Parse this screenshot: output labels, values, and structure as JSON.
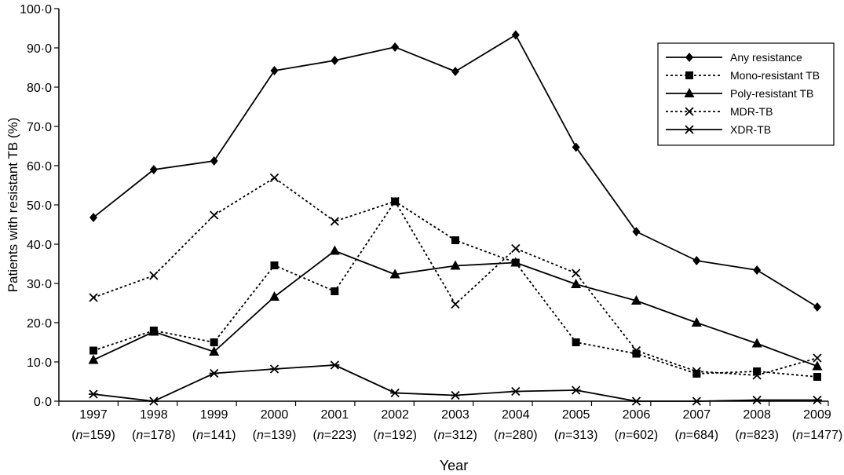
{
  "chart_data": {
    "type": "line",
    "ylabel": "Patients with resistant TB (%)",
    "xlabel": "Year",
    "ylim": [
      0,
      100
    ],
    "yticks": [
      "0·0",
      "10·0",
      "20·0",
      "30·0",
      "40·0",
      "50·0",
      "60·0",
      "70·0",
      "80·0",
      "90·0",
      "100·0"
    ],
    "categories": [
      "1997",
      "1998",
      "1999",
      "2000",
      "2001",
      "2002",
      "2003",
      "2004",
      "2005",
      "2006",
      "2007",
      "2008",
      "2009"
    ],
    "category_n": [
      "159",
      "178",
      "141",
      "139",
      "223",
      "192",
      "312",
      "280",
      "313",
      "602",
      "684",
      "823",
      "1477"
    ],
    "n_prefix": "n",
    "grid": false,
    "legend_position": "top-right",
    "series": [
      {
        "name": "Any resistance",
        "marker": "diamond",
        "line": "solid",
        "values": [
          46.8,
          59.0,
          61.2,
          84.2,
          86.8,
          90.2,
          84.0,
          93.3,
          64.7,
          43.2,
          35.8,
          33.4,
          24.0
        ]
      },
      {
        "name": "Mono-resistant TB",
        "marker": "square",
        "line": "dotted",
        "values": [
          12.9,
          18.0,
          15.0,
          34.6,
          28.0,
          50.9,
          41.0,
          35.3,
          15.0,
          12.1,
          7.0,
          7.6,
          6.2
        ]
      },
      {
        "name": "Poly-resistant TB",
        "marker": "triangle",
        "line": "solid",
        "values": [
          10.5,
          17.7,
          12.6,
          26.6,
          38.3,
          32.3,
          34.5,
          35.3,
          29.8,
          25.6,
          20.0,
          14.7,
          8.9
        ]
      },
      {
        "name": "MDR-TB",
        "marker": "x",
        "line": "dotted",
        "values": [
          26.4,
          32.0,
          47.4,
          56.9,
          45.8,
          50.9,
          24.7,
          38.9,
          32.6,
          12.9,
          7.6,
          6.6,
          11.0
        ]
      },
      {
        "name": "XDR-TB",
        "marker": "asterisk",
        "line": "solid",
        "values": [
          1.8,
          0.0,
          7.1,
          8.2,
          9.2,
          2.1,
          1.5,
          2.5,
          2.8,
          0.0,
          0.0,
          0.3,
          0.3
        ]
      }
    ]
  }
}
